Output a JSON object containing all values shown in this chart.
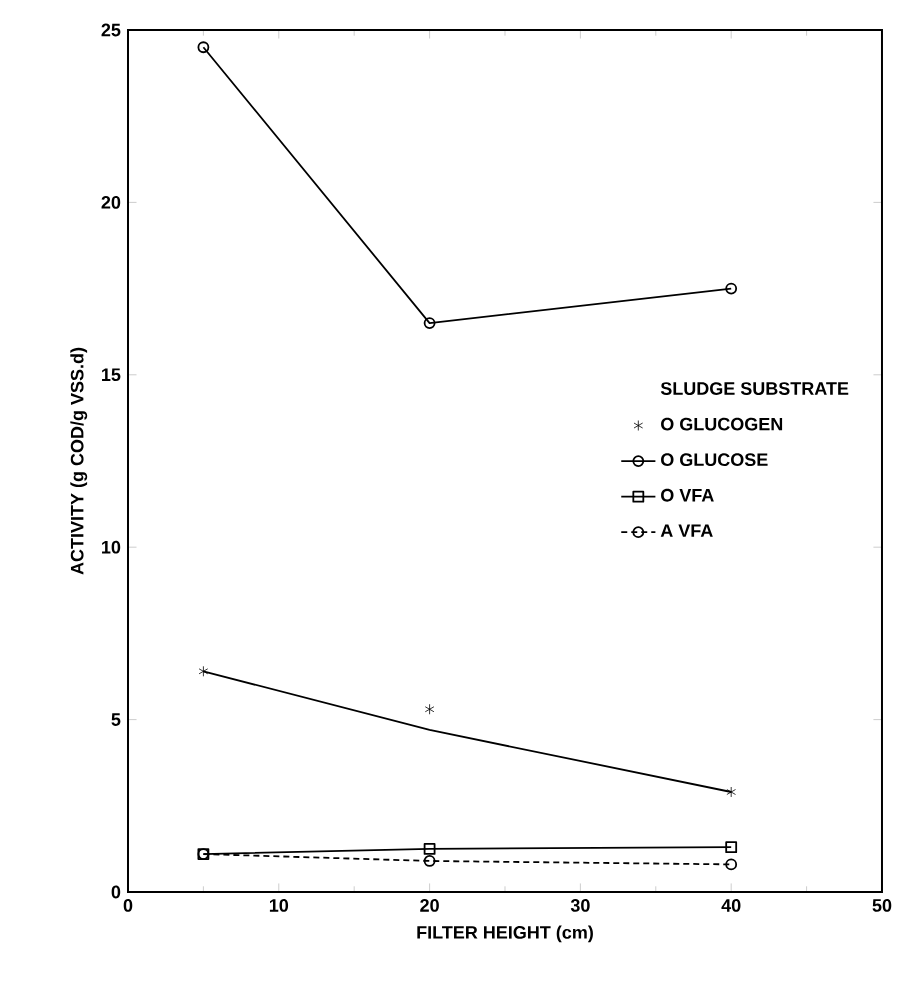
{
  "chart_data": {
    "type": "line",
    "xlabel": "FILTER HEIGHT    (cm)",
    "ylabel": "ACTIVITY  (g COD/g VSS.d)",
    "x": [
      5,
      20,
      40
    ],
    "xlim": [
      0,
      50
    ],
    "ylim": [
      0,
      25
    ],
    "xticks": [
      0,
      10,
      20,
      30,
      40,
      50
    ],
    "yticks": [
      0,
      5,
      10,
      15,
      20,
      25
    ],
    "legend": "right",
    "legend_title": "SLUDGE   SUBSTRATE",
    "series": [
      {
        "name": "O     GLUCOGEN",
        "type": "scatter",
        "marker": "cross",
        "color": "#000000",
        "values": [
          6.4,
          5.3,
          2.9
        ]
      },
      {
        "name": "O     GLUCOSE",
        "marker": "circle",
        "line_style": "solid",
        "color": "#000000",
        "values": [
          24.5,
          16.5,
          17.5
        ]
      },
      {
        "name": "O     VFA",
        "marker": "square",
        "line_style": "solid",
        "color": "#000000",
        "values": [
          1.1,
          1.25,
          1.3
        ]
      },
      {
        "name": "A     VFA",
        "marker": "circle",
        "line_style": "dashed",
        "color": "#000000",
        "values": [
          1.1,
          0.9,
          0.8
        ]
      },
      {
        "marker": "none",
        "line_style": "solid",
        "color": "#000000",
        "x": [
          5,
          20,
          40
        ],
        "values": [
          6.4,
          4.7,
          2.9
        ]
      }
    ]
  }
}
